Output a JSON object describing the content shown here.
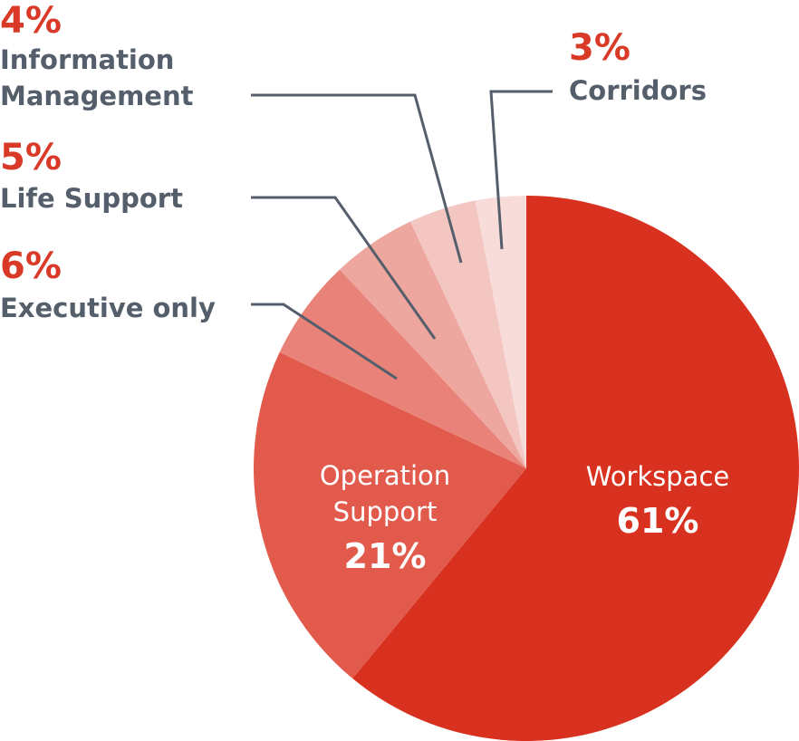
{
  "chart_data": {
    "type": "pie",
    "slices": [
      {
        "label": "Workspace",
        "value": 61,
        "value_label": "61%",
        "color": "#d9311f"
      },
      {
        "label": "Operation\nSupport",
        "value": 21,
        "value_label": "21%",
        "color": "#e15a4c"
      },
      {
        "label": "Executive only",
        "value": 6,
        "value_label": "6%",
        "color": "#e98278"
      },
      {
        "label": "Life Support",
        "value": 5,
        "value_label": "5%",
        "color": "#eea79f"
      },
      {
        "label": "Information\nManagement",
        "value": 4,
        "value_label": "4%",
        "color": "#f3c6c1"
      },
      {
        "label": "Corridors",
        "value": 3,
        "value_label": "3%",
        "color": "#f8dcda"
      }
    ]
  },
  "colors": {
    "accent": "#d93a27",
    "label_text": "#555e6b"
  }
}
